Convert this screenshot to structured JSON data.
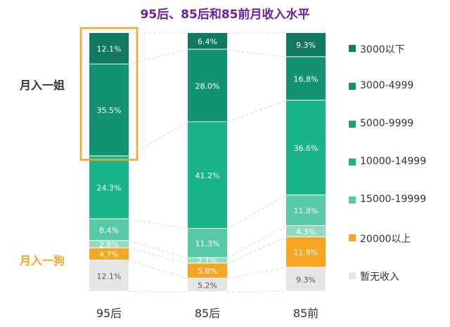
{
  "chart_data": {
    "type": "bar",
    "stacked": true,
    "normalized_percent": true,
    "title": "95后、85后和85前月收入水平",
    "categories": [
      "95后",
      "85后",
      "85前"
    ],
    "series": [
      {
        "name": "3000以下",
        "color": "#117a5e",
        "values": [
          12.1,
          6.4,
          9.3
        ]
      },
      {
        "name": "3000-4999",
        "color": "#139272",
        "values": [
          35.5,
          28.0,
          16.8
        ]
      },
      {
        "name": "5000-9999",
        "color": "#17a27e",
        "values": [
          0.0,
          0.0,
          0.0
        ]
      },
      {
        "name": "10000-14999",
        "color": "#1ab48b",
        "values": [
          24.3,
          41.2,
          36.6
        ]
      },
      {
        "name": "15000-19999",
        "color": "#58c9a6",
        "values": [
          8.4,
          11.3,
          11.8
        ]
      },
      {
        "name": "",
        "color": "#8fdcc3",
        "values": [
          2.8,
          2.1,
          4.3
        ]
      },
      {
        "name": "20000以上",
        "color": "#f6a623",
        "values": [
          4.7,
          5.8,
          11.8
        ]
      },
      {
        "name": "暂无收入",
        "color": "#e6e6e6",
        "values": [
          12.1,
          5.2,
          9.3
        ]
      }
    ],
    "value_labels": [
      [
        "12.1%",
        "35.5%",
        "",
        "24.3%",
        "8.4%",
        "2.8%",
        "4.7%",
        "12.1%"
      ],
      [
        "6.4%",
        "28.0%",
        "",
        "41.2%",
        "11.3%",
        "2.1%",
        "5.8%",
        "5.2%"
      ],
      [
        "9.3%",
        "16.8%",
        "",
        "36.6%",
        "11.8%",
        "4.3%",
        "11.8%",
        "9.3%"
      ]
    ],
    "legend": [
      "3000以下",
      "3000-4999",
      "5000-9999",
      "10000-14999",
      "15000-19999",
      "20000以上",
      "暂无收入"
    ],
    "legend_colors": [
      "#117a5e",
      "#139272",
      "#17a27e",
      "#1ab48b",
      "#58c9a6",
      "#f6a623",
      "#e6e6e6"
    ],
    "legend_position": "right",
    "grid": false,
    "annotations": [
      {
        "text": "月入一姐",
        "color": "#333333"
      },
      {
        "text": "月入一狗",
        "color": "#f6a623"
      }
    ],
    "highlight_color": "#f6a623"
  }
}
